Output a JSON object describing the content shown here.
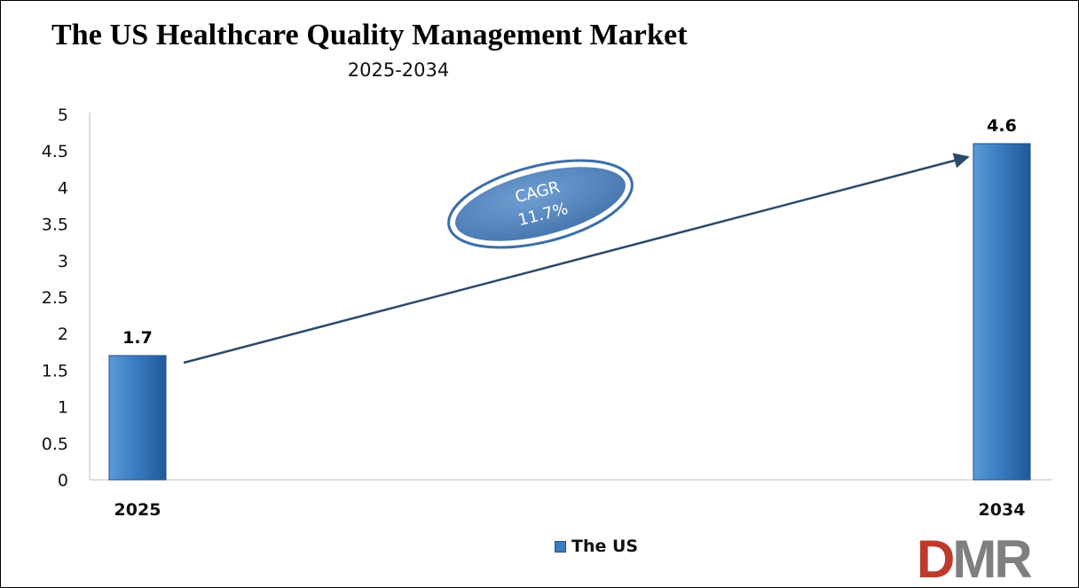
{
  "title": "The US Healthcare Quality Management Market",
  "subtitle": "2025-2034",
  "chart_data": {
    "type": "bar",
    "categories": [
      "2025",
      "2034"
    ],
    "series": [
      {
        "name": "The US",
        "values": [
          1.7,
          4.6
        ]
      }
    ],
    "data_labels": [
      "1.7",
      "4.6"
    ],
    "ylim": [
      0,
      5
    ],
    "yticks": [
      "0",
      "0.5",
      "1",
      "1.5",
      "2",
      "2.5",
      "3",
      "3.5",
      "4",
      "4.5",
      "5"
    ],
    "grid": false,
    "legend_position": "bottom",
    "annotation": {
      "line1": "CAGR",
      "line2": "11.7%"
    },
    "colors": {
      "bar": "#3a7dc2",
      "bar_dark": "#1f5a9a",
      "arrow": "#2c4a6b",
      "oval": "#4a7eb8"
    }
  },
  "logo": {
    "text": "DMR",
    "colors": {
      "d": "#c0392b",
      "mr": "#7f7f7f"
    }
  }
}
